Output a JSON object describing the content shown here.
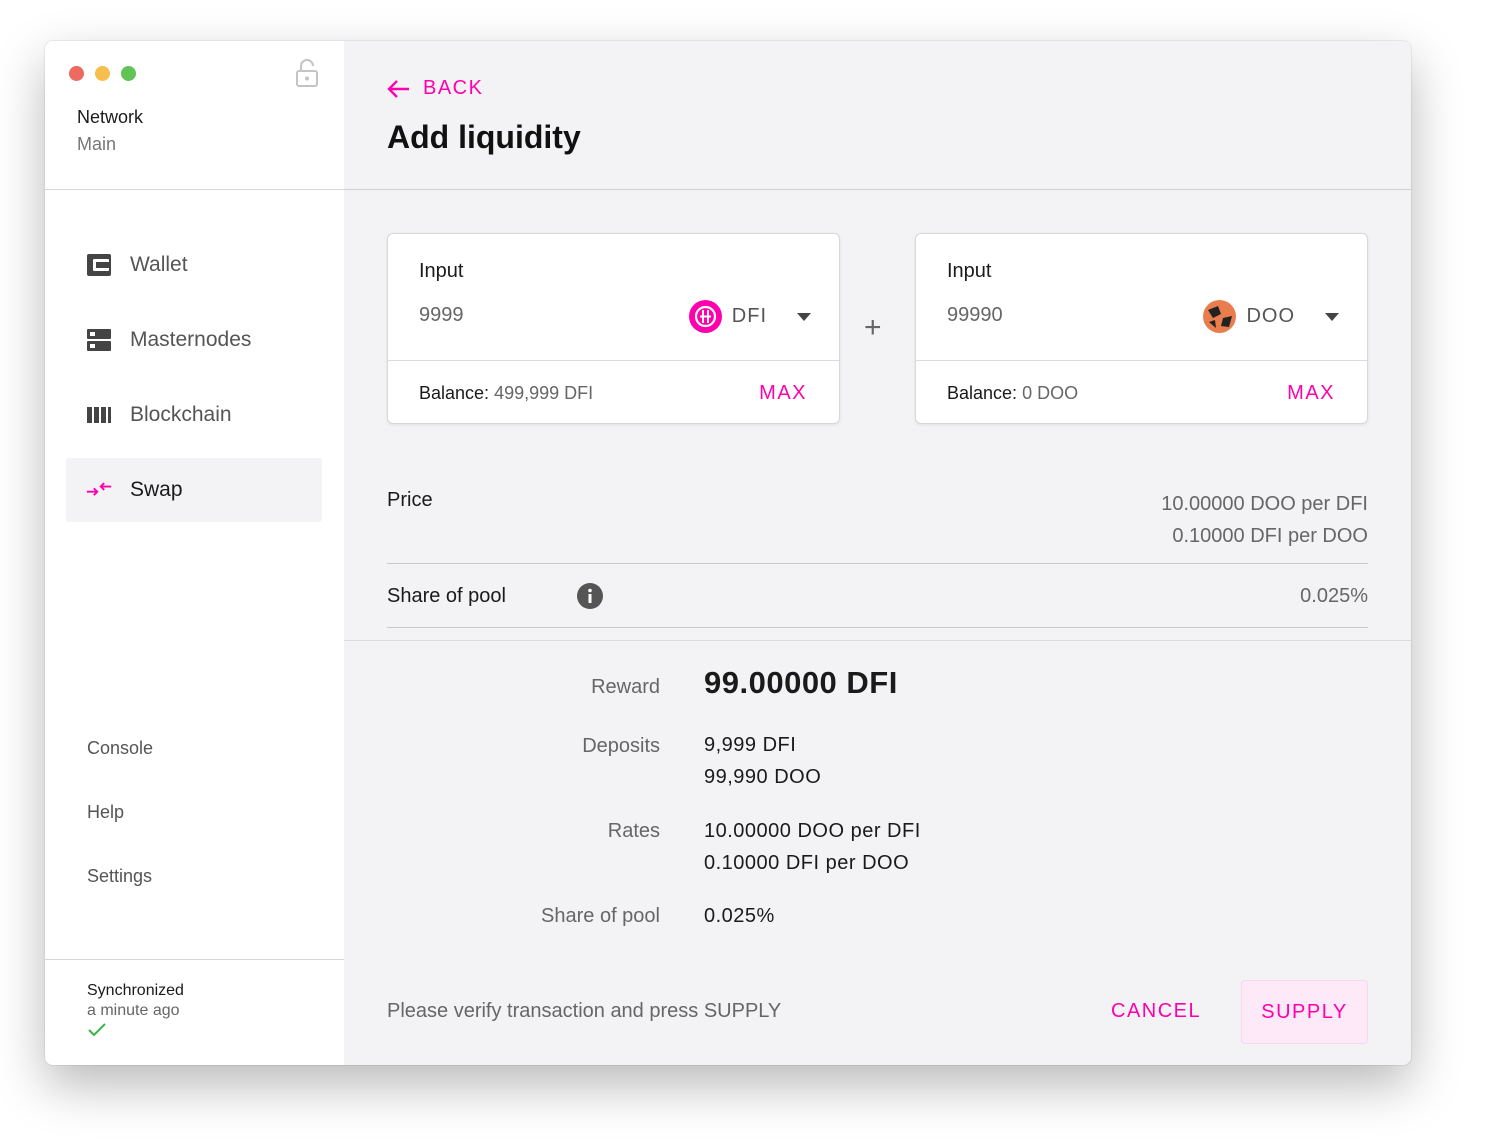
{
  "sidebar": {
    "network_label": "Network",
    "network_value": "Main",
    "items": [
      {
        "label": "Wallet",
        "icon": "wallet-icon"
      },
      {
        "label": "Masternodes",
        "icon": "server-icon"
      },
      {
        "label": "Blockchain",
        "icon": "blocks-icon"
      },
      {
        "label": "Swap",
        "icon": "swap-icon",
        "active": true
      }
    ],
    "sub_items": [
      "Console",
      "Help",
      "Settings"
    ],
    "sync_title": "Synchronized",
    "sync_time": "a minute ago"
  },
  "header": {
    "back_label": "BACK",
    "title": "Add liquidity"
  },
  "inputs": [
    {
      "label": "Input",
      "value": "9999",
      "token": "DFI",
      "balance_label": "Balance:",
      "balance_value": "499,999 DFI",
      "max_label": "MAX"
    },
    {
      "label": "Input",
      "value": "99990",
      "token": "DOO",
      "balance_label": "Balance:",
      "balance_value": "0 DOO",
      "max_label": "MAX"
    }
  ],
  "plus": "+",
  "price": {
    "label": "Price",
    "line1": "10.00000 DOO per DFI",
    "line2": "0.10000 DFI per DOO"
  },
  "share": {
    "label": "Share of pool",
    "value": "0.025%"
  },
  "summary": {
    "reward_label": "Reward",
    "reward_value": "99.00000 DFI",
    "deposits_label": "Deposits",
    "deposit1": "9,999 DFI",
    "deposit2": "99,990 DOO",
    "rates_label": "Rates",
    "rate1": "10.00000 DOO per DFI",
    "rate2": "0.10000 DFI per DOO",
    "share_label": "Share of pool",
    "share_value": "0.025%"
  },
  "footer": {
    "message": "Please verify transaction and press SUPPLY",
    "cancel_label": "CANCEL",
    "supply_label": "SUPPLY"
  },
  "colors": {
    "accent": "#ff00af",
    "background": "#f3f3f5",
    "sidebar": "#ffffff",
    "success": "#3cb44b"
  }
}
